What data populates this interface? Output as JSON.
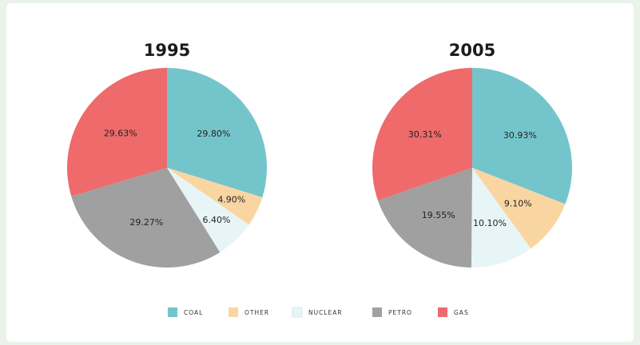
{
  "chart_data": {
    "type": "pie",
    "legend": [
      {
        "name": "COAL",
        "color": "#74c5cb"
      },
      {
        "name": "OTHER",
        "color": "#f9d6a1"
      },
      {
        "name": "NUCLEAR",
        "color": "#e8f5f7"
      },
      {
        "name": "PETRO",
        "color": "#a0a0a0"
      },
      {
        "name": "GAS",
        "color": "#ef6a6b"
      }
    ],
    "legend_position": "bottom",
    "charts": [
      {
        "title": "1995",
        "slices": [
          {
            "name": "COAL",
            "value": 29.8,
            "label": "29.80%"
          },
          {
            "name": "OTHER",
            "value": 4.9,
            "label": "4.90%"
          },
          {
            "name": "NUCLEAR",
            "value": 6.4,
            "label": "6.40%"
          },
          {
            "name": "PETRO",
            "value": 29.27,
            "label": "29.27%"
          },
          {
            "name": "GAS",
            "value": 29.63,
            "label": "29.63%"
          }
        ]
      },
      {
        "title": "2005",
        "slices": [
          {
            "name": "COAL",
            "value": 30.93,
            "label": "30.93%"
          },
          {
            "name": "OTHER",
            "value": 9.1,
            "label": "9.10%"
          },
          {
            "name": "NUCLEAR",
            "value": 10.1,
            "label": "10.10%"
          },
          {
            "name": "PETRO",
            "value": 19.55,
            "label": "19.55%"
          },
          {
            "name": "GAS",
            "value": 30.31,
            "label": "30.31%"
          }
        ]
      }
    ]
  }
}
